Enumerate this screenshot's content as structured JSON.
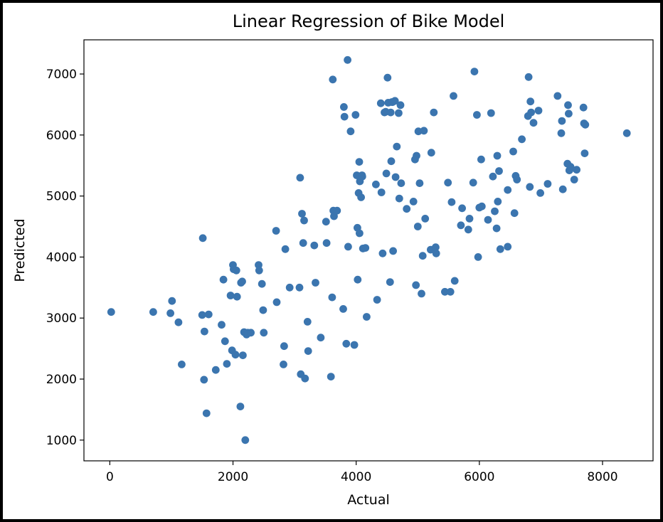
{
  "chart_data": {
    "type": "scatter",
    "title": "Linear Regression of Bike Model",
    "xlabel": "Actual",
    "ylabel": "Predicted",
    "xlim": [
      -420,
      8820
    ],
    "ylim": [
      660,
      7560
    ],
    "xticks": [
      0,
      2000,
      4000,
      6000,
      8000
    ],
    "yticks": [
      1000,
      2000,
      3000,
      4000,
      5000,
      6000,
      7000
    ],
    "grid": false,
    "marker_color": "#3b75af",
    "x": [
      22,
      705,
      985,
      1010,
      1115,
      1167,
      1500,
      1510,
      1530,
      1536,
      1570,
      1605,
      1720,
      1815,
      1845,
      1870,
      1900,
      1960,
      1985,
      2000,
      2010,
      2040,
      2055,
      2065,
      2120,
      2130,
      2150,
      2160,
      2180,
      2200,
      2220,
      2240,
      2290,
      2415,
      2425,
      2470,
      2490,
      2500,
      2700,
      2710,
      2820,
      2830,
      2850,
      2920,
      3080,
      3090,
      3100,
      3120,
      3140,
      3155,
      3170,
      3210,
      3220,
      3320,
      3340,
      3425,
      3510,
      3520,
      3590,
      3610,
      3620,
      3630,
      3640,
      3690,
      3790,
      3800,
      3810,
      3840,
      3860,
      3870,
      3910,
      3970,
      3990,
      4010,
      4020,
      4025,
      4040,
      4050,
      4055,
      4060,
      4080,
      4095,
      4100,
      4110,
      4150,
      4170,
      4320,
      4340,
      4400,
      4410,
      4430,
      4460,
      4480,
      4490,
      4510,
      4520,
      4550,
      4560,
      4570,
      4580,
      4590,
      4600,
      4630,
      4640,
      4660,
      4690,
      4700,
      4720,
      4730,
      4820,
      4930,
      4955,
      4970,
      4980,
      5000,
      5010,
      5030,
      5060,
      5080,
      5100,
      5120,
      5210,
      5220,
      5260,
      5290,
      5300,
      5440,
      5490,
      5530,
      5550,
      5580,
      5600,
      5700,
      5720,
      5820,
      5840,
      5900,
      5920,
      5960,
      5980,
      6000,
      6030,
      6040,
      6140,
      6190,
      6220,
      6250,
      6280,
      6290,
      6300,
      6320,
      6340,
      6460,
      6460,
      6550,
      6570,
      6590,
      6610,
      6690,
      6790,
      6800,
      6820,
      6830,
      6840,
      6880,
      6960,
      6990,
      7110,
      7270,
      7330,
      7340,
      7355,
      7430,
      7440,
      7450,
      7460,
      7480,
      7540,
      7580,
      7690,
      7700,
      7710,
      7720,
      8395
    ],
    "y": [
      3100,
      3100,
      3080,
      3280,
      2930,
      2240,
      3050,
      4310,
      1990,
      2780,
      1440,
      3060,
      2150,
      2890,
      3630,
      2620,
      2250,
      3370,
      2470,
      3870,
      3800,
      2400,
      3780,
      3350,
      1550,
      3580,
      3600,
      2390,
      2770,
      1000,
      2730,
      2760,
      2760,
      3870,
      3780,
      3560,
      3130,
      2760,
      4430,
      3260,
      2240,
      2540,
      4130,
      3500,
      3500,
      5300,
      2080,
      4710,
      4230,
      4600,
      2010,
      2940,
      2460,
      4190,
      3580,
      2680,
      4580,
      4230,
      2040,
      3340,
      6910,
      4760,
      4670,
      4760,
      3150,
      6460,
      6300,
      2580,
      7230,
      4170,
      6060,
      2560,
      6330,
      5340,
      4480,
      3630,
      5050,
      5560,
      4390,
      5240,
      4980,
      5340,
      5320,
      4140,
      4150,
      3020,
      5190,
      3300,
      6520,
      5060,
      4060,
      6370,
      6380,
      5370,
      6940,
      6530,
      3590,
      6370,
      5570,
      6540,
      6540,
      4100,
      6560,
      5310,
      5810,
      6360,
      4960,
      6490,
      5210,
      4790,
      4910,
      5600,
      3540,
      5660,
      4500,
      6060,
      5210,
      3400,
      4020,
      6070,
      4630,
      4120,
      5710,
      6370,
      4160,
      4060,
      3430,
      5220,
      3430,
      4900,
      6640,
      3610,
      4520,
      4800,
      4450,
      4630,
      5220,
      7040,
      6330,
      4000,
      4810,
      5600,
      4830,
      4610,
      6360,
      5320,
      4750,
      4470,
      5660,
      4910,
      5410,
      4130,
      4170,
      5100,
      5730,
      4720,
      5330,
      5270,
      5930,
      6310,
      6950,
      5150,
      6550,
      6370,
      6200,
      6400,
      5050,
      5200,
      6640,
      6030,
      6230,
      5110,
      5530,
      6490,
      6350,
      5420,
      5480,
      5270,
      5430,
      6450,
      6190,
      5700,
      6170,
      6030
    ]
  }
}
